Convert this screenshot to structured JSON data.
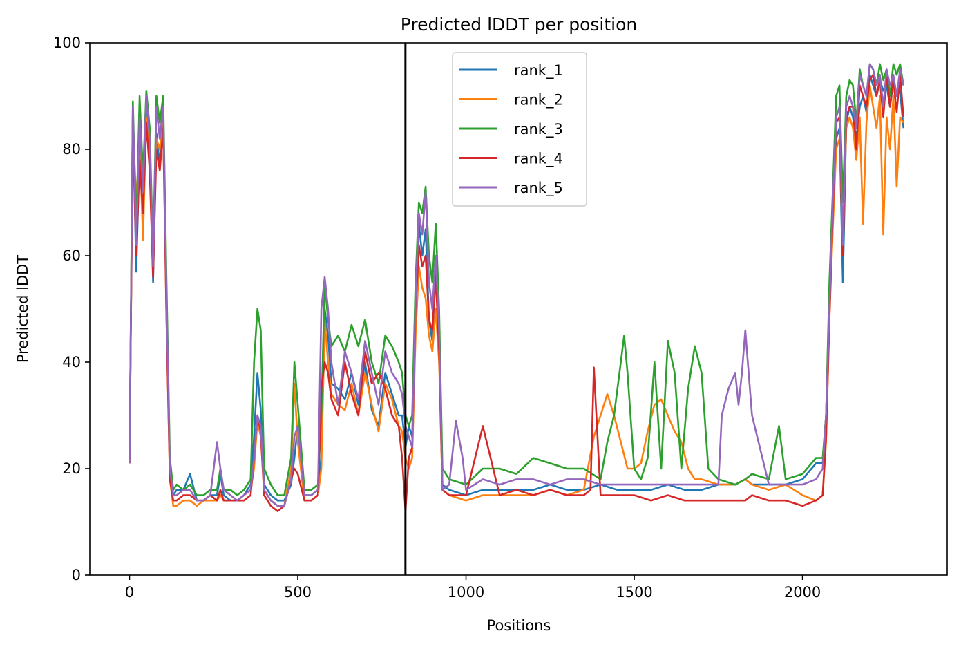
{
  "chart_data": {
    "type": "line",
    "title": "Predicted lDDT per position",
    "xlabel": "Positions",
    "ylabel": "Predicted lDDT",
    "xlim": [
      -118,
      2430
    ],
    "ylim": [
      0,
      100
    ],
    "xticks": [
      0,
      500,
      1000,
      1500,
      2000
    ],
    "yticks": [
      0,
      20,
      40,
      60,
      80,
      100
    ],
    "grid": false,
    "legend_position": "upper center",
    "vertical_line_x": 820,
    "series": [
      {
        "name": "rank_1",
        "color": "#1f77b4",
        "x": [
          0,
          10,
          20,
          30,
          40,
          50,
          60,
          70,
          80,
          90,
          100,
          110,
          120,
          130,
          140,
          160,
          180,
          200,
          220,
          240,
          260,
          270,
          280,
          300,
          320,
          340,
          360,
          370,
          380,
          390,
          400,
          420,
          440,
          460,
          480,
          490,
          500,
          520,
          540,
          560,
          570,
          580,
          590,
          600,
          620,
          640,
          660,
          680,
          700,
          720,
          740,
          760,
          780,
          800,
          810,
          820,
          830,
          840,
          850,
          860,
          870,
          880,
          890,
          900,
          910,
          920,
          930,
          950,
          1000,
          1050,
          1100,
          1150,
          1200,
          1250,
          1300,
          1350,
          1400,
          1450,
          1500,
          1550,
          1600,
          1650,
          1700,
          1750,
          1800,
          1830,
          1850,
          1900,
          1950,
          2000,
          2040,
          2060,
          2070,
          2080,
          2090,
          2100,
          2110,
          2120,
          2130,
          2140,
          2150,
          2160,
          2170,
          2180,
          2190,
          2200,
          2210,
          2220,
          2230,
          2240,
          2250,
          2260,
          2270,
          2280,
          2290,
          2300
        ],
        "y": [
          21,
          87,
          57,
          80,
          66,
          87,
          79,
          55,
          83,
          77,
          88,
          50,
          20,
          15,
          16,
          16,
          19,
          14,
          14,
          15,
          15,
          19,
          15,
          14,
          14,
          15,
          17,
          26,
          38,
          31,
          17,
          15,
          14,
          14,
          17,
          22,
          28,
          15,
          15,
          16,
          22,
          50,
          45,
          36,
          35,
          33,
          38,
          32,
          40,
          31,
          28,
          38,
          34,
          30,
          30,
          24,
          28,
          26,
          50,
          66,
          60,
          65,
          48,
          44,
          60,
          45,
          17,
          16,
          15,
          16,
          16,
          16,
          16,
          17,
          16,
          16,
          17,
          16,
          16,
          16,
          17,
          16,
          16,
          17,
          17,
          18,
          17,
          17,
          17,
          18,
          21,
          21,
          30,
          52,
          70,
          82,
          84,
          55,
          85,
          88,
          86,
          82,
          88,
          90,
          87,
          94,
          92,
          90,
          93,
          91,
          92,
          88,
          93,
          90,
          91,
          84
        ]
      },
      {
        "name": "rank_2",
        "color": "#ff7f0e",
        "x": [
          0,
          10,
          20,
          30,
          40,
          50,
          60,
          70,
          80,
          90,
          100,
          110,
          120,
          130,
          140,
          160,
          180,
          200,
          220,
          240,
          260,
          270,
          280,
          300,
          320,
          340,
          360,
          370,
          380,
          390,
          400,
          420,
          440,
          460,
          480,
          490,
          500,
          520,
          540,
          560,
          570,
          580,
          590,
          600,
          620,
          640,
          660,
          680,
          700,
          720,
          740,
          760,
          780,
          800,
          810,
          820,
          830,
          840,
          850,
          860,
          870,
          880,
          890,
          900,
          910,
          920,
          930,
          950,
          1000,
          1050,
          1100,
          1150,
          1200,
          1250,
          1300,
          1350,
          1380,
          1400,
          1420,
          1440,
          1460,
          1480,
          1500,
          1520,
          1540,
          1560,
          1580,
          1600,
          1620,
          1640,
          1660,
          1680,
          1700,
          1750,
          1800,
          1830,
          1850,
          1900,
          1950,
          2000,
          2040,
          2060,
          2070,
          2080,
          2090,
          2100,
          2110,
          2120,
          2130,
          2140,
          2150,
          2160,
          2170,
          2180,
          2190,
          2200,
          2210,
          2220,
          2230,
          2240,
          2250,
          2260,
          2270,
          2280,
          2290,
          2300
        ],
        "y": [
          21,
          85,
          70,
          82,
          63,
          86,
          78,
          58,
          82,
          80,
          86,
          48,
          18,
          13,
          13,
          14,
          14,
          13,
          14,
          14,
          14,
          15,
          14,
          14,
          14,
          15,
          16,
          20,
          29,
          26,
          16,
          14,
          13,
          13,
          20,
          36,
          25,
          14,
          14,
          15,
          20,
          48,
          40,
          34,
          32,
          31,
          36,
          30,
          38,
          32,
          27,
          36,
          33,
          28,
          27,
          22,
          20,
          22,
          45,
          58,
          54,
          52,
          45,
          42,
          50,
          40,
          16,
          15,
          14,
          15,
          15,
          15,
          15,
          16,
          15,
          16,
          26,
          30,
          34,
          30,
          25,
          20,
          20,
          21,
          27,
          32,
          33,
          30,
          27,
          25,
          20,
          18,
          18,
          17,
          17,
          18,
          17,
          16,
          17,
          15,
          14,
          15,
          25,
          48,
          65,
          80,
          82,
          62,
          84,
          86,
          84,
          78,
          86,
          66,
          85,
          92,
          88,
          84,
          90,
          64,
          86,
          80,
          90,
          73,
          86,
          85
        ]
      },
      {
        "name": "rank_3",
        "color": "#2ca02c",
        "x": [
          0,
          10,
          20,
          30,
          40,
          50,
          60,
          70,
          80,
          90,
          100,
          110,
          120,
          130,
          140,
          160,
          180,
          200,
          220,
          240,
          260,
          270,
          280,
          300,
          320,
          340,
          360,
          370,
          380,
          390,
          400,
          420,
          440,
          460,
          480,
          490,
          500,
          520,
          540,
          560,
          570,
          580,
          590,
          600,
          620,
          640,
          660,
          680,
          700,
          720,
          740,
          760,
          780,
          800,
          810,
          820,
          830,
          840,
          850,
          860,
          870,
          880,
          890,
          900,
          910,
          920,
          930,
          950,
          1000,
          1050,
          1100,
          1150,
          1200,
          1250,
          1300,
          1350,
          1400,
          1420,
          1440,
          1460,
          1470,
          1480,
          1500,
          1520,
          1540,
          1560,
          1580,
          1600,
          1620,
          1640,
          1660,
          1680,
          1700,
          1720,
          1750,
          1800,
          1830,
          1850,
          1900,
          1930,
          1950,
          2000,
          2040,
          2060,
          2070,
          2080,
          2090,
          2100,
          2110,
          2120,
          2130,
          2140,
          2150,
          2160,
          2170,
          2180,
          2190,
          2200,
          2210,
          2220,
          2230,
          2240,
          2250,
          2260,
          2270,
          2280,
          2290,
          2300
        ],
        "y": [
          21,
          89,
          65,
          90,
          75,
          91,
          84,
          60,
          90,
          85,
          90,
          55,
          22,
          16,
          17,
          16,
          17,
          15,
          15,
          16,
          16,
          20,
          16,
          16,
          15,
          16,
          18,
          40,
          50,
          46,
          20,
          17,
          15,
          15,
          22,
          40,
          32,
          16,
          16,
          17,
          30,
          55,
          48,
          43,
          45,
          42,
          47,
          43,
          48,
          40,
          36,
          45,
          43,
          40,
          38,
          30,
          28,
          30,
          55,
          70,
          68,
          73,
          60,
          55,
          66,
          50,
          20,
          18,
          17,
          20,
          20,
          19,
          22,
          21,
          20,
          20,
          18,
          25,
          30,
          40,
          45,
          38,
          20,
          18,
          22,
          40,
          20,
          44,
          38,
          20,
          35,
          43,
          38,
          20,
          18,
          17,
          18,
          19,
          18,
          28,
          18,
          19,
          22,
          22,
          30,
          55,
          72,
          90,
          92,
          70,
          90,
          93,
          92,
          85,
          95,
          92,
          90,
          96,
          95,
          92,
          96,
          93,
          95,
          90,
          96,
          94,
          96,
          92
        ]
      },
      {
        "name": "rank_4",
        "color": "#d62728",
        "x": [
          0,
          10,
          20,
          30,
          40,
          50,
          60,
          70,
          80,
          90,
          100,
          110,
          120,
          130,
          140,
          160,
          180,
          200,
          220,
          240,
          260,
          270,
          280,
          300,
          320,
          340,
          360,
          370,
          380,
          390,
          400,
          420,
          440,
          460,
          480,
          490,
          500,
          520,
          540,
          560,
          570,
          580,
          590,
          600,
          620,
          640,
          660,
          680,
          700,
          720,
          740,
          760,
          780,
          800,
          810,
          820,
          830,
          840,
          850,
          860,
          870,
          880,
          890,
          900,
          910,
          920,
          930,
          950,
          1000,
          1050,
          1100,
          1150,
          1200,
          1250,
          1300,
          1350,
          1370,
          1380,
          1400,
          1450,
          1500,
          1550,
          1600,
          1650,
          1700,
          1750,
          1800,
          1830,
          1850,
          1900,
          1950,
          2000,
          2040,
          2060,
          2070,
          2080,
          2090,
          2100,
          2110,
          2120,
          2130,
          2140,
          2150,
          2160,
          2170,
          2180,
          2190,
          2200,
          2210,
          2220,
          2230,
          2240,
          2250,
          2260,
          2270,
          2280,
          2290,
          2300
        ],
        "y": [
          21,
          84,
          60,
          78,
          68,
          85,
          76,
          56,
          80,
          76,
          84,
          48,
          18,
          14,
          14,
          15,
          15,
          14,
          14,
          15,
          14,
          16,
          14,
          14,
          14,
          14,
          15,
          22,
          30,
          27,
          15,
          13,
          12,
          13,
          18,
          20,
          19,
          14,
          14,
          15,
          35,
          40,
          38,
          33,
          30,
          40,
          34,
          30,
          42,
          36,
          38,
          35,
          30,
          28,
          22,
          12,
          22,
          24,
          50,
          62,
          58,
          60,
          48,
          46,
          56,
          42,
          16,
          15,
          15,
          28,
          15,
          16,
          15,
          16,
          15,
          15,
          16,
          39,
          15,
          15,
          15,
          14,
          15,
          14,
          14,
          14,
          14,
          14,
          15,
          14,
          14,
          13,
          14,
          15,
          26,
          48,
          68,
          85,
          86,
          60,
          86,
          88,
          88,
          80,
          92,
          90,
          88,
          93,
          94,
          90,
          93,
          86,
          94,
          88,
          93,
          87,
          94,
          86
        ]
      },
      {
        "name": "rank_5",
        "color": "#9467bd",
        "x": [
          0,
          10,
          20,
          30,
          40,
          50,
          60,
          70,
          80,
          90,
          100,
          110,
          120,
          130,
          140,
          160,
          180,
          200,
          220,
          240,
          260,
          270,
          280,
          300,
          320,
          340,
          360,
          370,
          380,
          390,
          400,
          420,
          440,
          460,
          480,
          490,
          500,
          520,
          540,
          560,
          570,
          580,
          590,
          600,
          620,
          640,
          660,
          680,
          700,
          720,
          740,
          760,
          780,
          800,
          810,
          820,
          830,
          840,
          850,
          860,
          870,
          880,
          890,
          900,
          910,
          920,
          930,
          950,
          970,
          990,
          1000,
          1050,
          1100,
          1150,
          1200,
          1250,
          1300,
          1350,
          1400,
          1450,
          1500,
          1550,
          1600,
          1650,
          1700,
          1750,
          1760,
          1780,
          1800,
          1810,
          1820,
          1830,
          1840,
          1850,
          1900,
          1950,
          2000,
          2040,
          2060,
          2070,
          2080,
          2090,
          2100,
          2110,
          2120,
          2130,
          2140,
          2150,
          2160,
          2170,
          2180,
          2190,
          2200,
          2210,
          2220,
          2230,
          2240,
          2250,
          2260,
          2270,
          2280,
          2290,
          2300
        ],
        "y": [
          21,
          88,
          62,
          86,
          72,
          90,
          82,
          58,
          88,
          82,
          88,
          52,
          20,
          15,
          15,
          16,
          16,
          14,
          14,
          15,
          25,
          20,
          16,
          15,
          14,
          15,
          16,
          22,
          30,
          28,
          16,
          14,
          13,
          13,
          18,
          26,
          28,
          15,
          15,
          16,
          50,
          56,
          50,
          40,
          32,
          42,
          38,
          33,
          44,
          38,
          32,
          42,
          38,
          36,
          34,
          28,
          26,
          24,
          52,
          68,
          64,
          72,
          55,
          50,
          60,
          46,
          16,
          17,
          29,
          22,
          16,
          18,
          17,
          18,
          18,
          17,
          18,
          18,
          17,
          17,
          17,
          17,
          17,
          17,
          17,
          17,
          30,
          35,
          38,
          32,
          38,
          46,
          38,
          30,
          17,
          17,
          17,
          18,
          20,
          30,
          50,
          70,
          86,
          88,
          62,
          88,
          90,
          88,
          84,
          94,
          92,
          90,
          96,
          95,
          92,
          94,
          88,
          95,
          92,
          94,
          90,
          95,
          92
        ]
      }
    ]
  }
}
